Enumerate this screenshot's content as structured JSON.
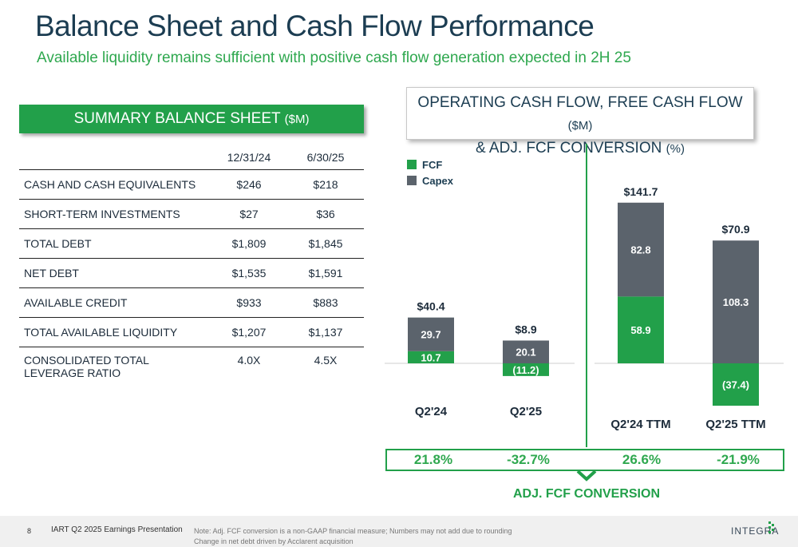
{
  "header": {
    "title": "Balance Sheet and Cash Flow Performance",
    "subtitle": "Available liquidity remains sufficient with positive cash flow generation expected in 2H 25"
  },
  "balance_sheet": {
    "title": "SUMMARY BALANCE SHEET",
    "title_unit": "($M)",
    "columns": [
      "12/31/24",
      "6/30/25"
    ],
    "rows": [
      {
        "label": "CASH AND CASH EQUIVALENTS",
        "v1": "$246",
        "v2": "$218"
      },
      {
        "label": "SHORT-TERM INVESTMENTS",
        "v1": "$27",
        "v2": "$36"
      },
      {
        "label": "TOTAL DEBT",
        "v1": "$1,809",
        "v2": "$1,845"
      },
      {
        "label": "NET DEBT",
        "v1": "$1,535",
        "v2": "$1,591"
      },
      {
        "label": "AVAILABLE CREDIT",
        "v1": "$933",
        "v2": "$883"
      },
      {
        "label": "TOTAL AVAILABLE LIQUIDITY",
        "v1": "$1,207",
        "v2": "$1,137"
      },
      {
        "label": "CONSOLIDATED TOTAL LEVERAGE RATIO",
        "v1": "4.0X",
        "v2": "4.5X"
      }
    ]
  },
  "cash_flow": {
    "title_line1": "OPERATING CASH FLOW, FREE CASH FLOW",
    "title_unit1": "($M)",
    "title_line2": "& ADJ. FCF CONVERSION",
    "title_unit2": "(%)",
    "conversion_label": "ADJ. FCF CONVERSION"
  },
  "colors": {
    "fcf": "#22a04a",
    "capex": "#5b636c",
    "accent": "#22a04a"
  },
  "chart_data": {
    "type": "bar",
    "stacked": true,
    "categories": [
      "Q2'24",
      "Q2'25",
      "Q2'24 TTM",
      "Q2'25 TTM"
    ],
    "series": [
      {
        "name": "FCF",
        "values": [
          10.7,
          -11.2,
          58.9,
          -37.4
        ],
        "labels": [
          "10.7",
          "(11.2)",
          "58.9",
          "(37.4)"
        ]
      },
      {
        "name": "Capex",
        "values": [
          29.7,
          20.1,
          82.8,
          108.3
        ],
        "labels": [
          "29.7",
          "20.1",
          "82.8",
          "108.3"
        ]
      }
    ],
    "totals": [
      "$40.4",
      "$8.9",
      "$141.7",
      "$70.9"
    ],
    "conversion": [
      "21.8%",
      "-32.7%",
      "26.6%",
      "-21.9%"
    ],
    "legend_position": "top-left"
  },
  "footer": {
    "page_number": "8",
    "presentation": "IART Q2 2025 Earnings Presentation",
    "note_line1": "Note: Adj. FCF conversion is a non-GAAP financial measure; Numbers may not add due to rounding",
    "note_line2": "Change in net debt driven by Acclarent acquisition",
    "logo_text": "INTEGRA"
  }
}
